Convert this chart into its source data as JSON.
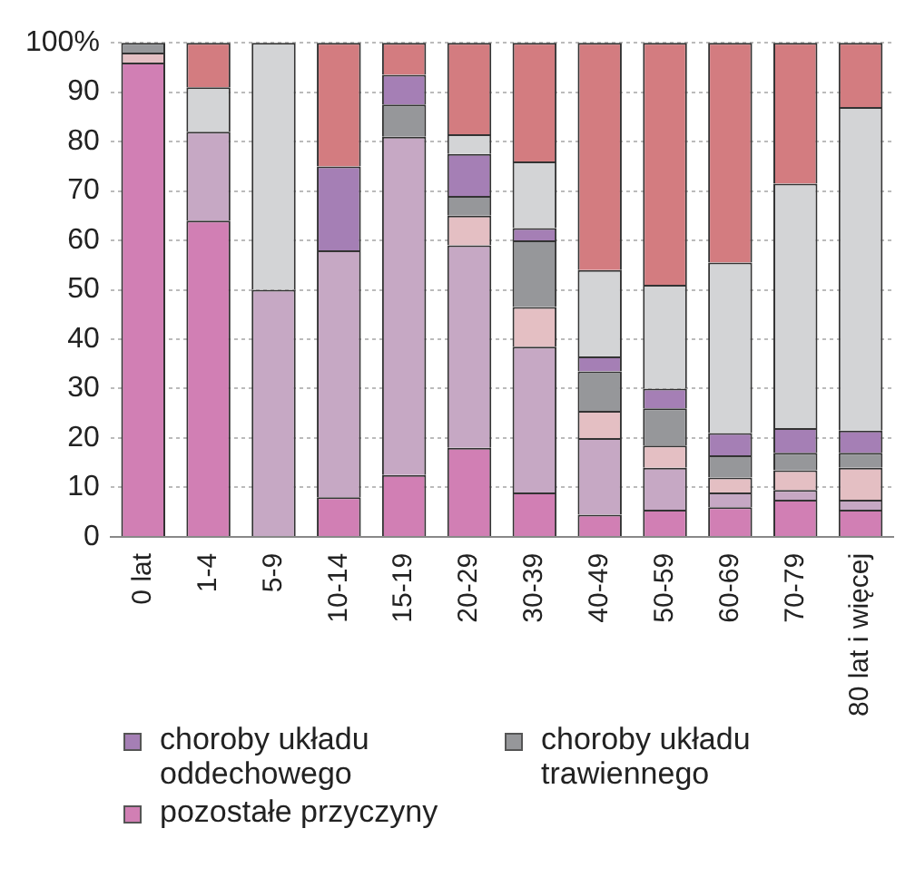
{
  "chart_data": {
    "type": "bar",
    "stacked": true,
    "categories": [
      "0 lat",
      "1-4",
      "5-9",
      "10-14",
      "15-19",
      "20-29",
      "30-39",
      "40-49",
      "50-59",
      "60-69",
      "70-79",
      "80 lat i więcej"
    ],
    "series": [
      {
        "name": "pozostałe przyczyny",
        "color": "#d17fb4",
        "values": [
          96,
          64,
          0,
          8,
          12.5,
          18,
          9,
          4.5,
          5.5,
          6,
          7.5,
          5.5
        ]
      },
      {
        "color": "#c6a8c4",
        "values": [
          0,
          18,
          50,
          50,
          68.5,
          41,
          29.5,
          15.5,
          8.5,
          3,
          2,
          2
        ]
      },
      {
        "color": "#e4bfc3",
        "values": [
          2,
          0,
          0,
          0,
          0,
          6,
          8,
          5.5,
          4.5,
          3,
          4,
          6.5
        ]
      },
      {
        "name": "choroby układu trawiennego",
        "color": "#96979a",
        "values": [
          2,
          0,
          0,
          0,
          6.5,
          4,
          13.5,
          8,
          7.5,
          4.5,
          3.5,
          3
        ]
      },
      {
        "name": "choroby układu oddechowego",
        "color": "#a57fb5",
        "values": [
          0,
          0,
          0,
          17,
          6,
          8.5,
          2.5,
          3,
          4,
          4.5,
          5,
          4.5
        ]
      },
      {
        "color": "#d3d4d6",
        "values": [
          0,
          9,
          50,
          0,
          0,
          4,
          13.5,
          17.5,
          21,
          34.5,
          49.5,
          65.5
        ]
      },
      {
        "color": "#d37c80",
        "values": [
          0,
          9,
          0,
          25,
          6.5,
          18.5,
          24,
          46,
          49,
          44.5,
          28.5,
          13
        ]
      }
    ],
    "ylim": [
      0,
      100
    ],
    "yticks": [
      0,
      10,
      20,
      30,
      40,
      50,
      60,
      70,
      80,
      90,
      {
        "value": 100,
        "label": "100%"
      }
    ],
    "grid": "y",
    "legend": "bottom"
  }
}
